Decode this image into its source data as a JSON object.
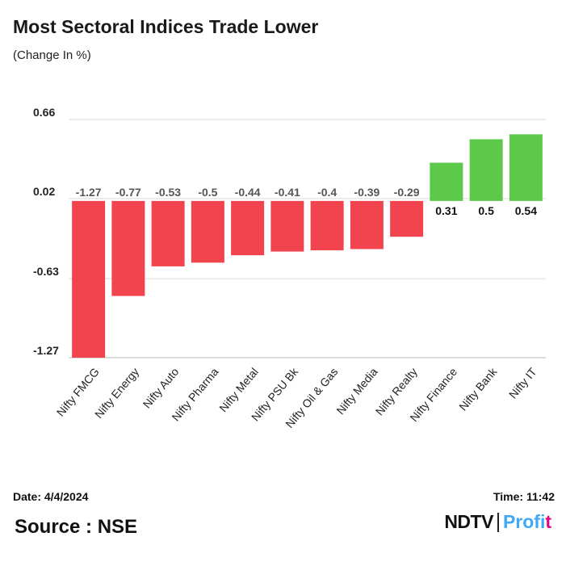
{
  "header": {
    "title": "Most Sectoral Indices Trade Lower",
    "subtitle": "(Change In %)"
  },
  "footer": {
    "date": "Date: 4/4/2024",
    "time": "Time: 11:42",
    "source": "Source : NSE"
  },
  "logo": {
    "brand": "NDTV",
    "product_lead": "Profi",
    "product_accent": "t"
  },
  "colors": {
    "negative": "#f2444f",
    "positive": "#5cc94a",
    "gridline": "#d9d9d9",
    "axis": "#cfcfcf"
  },
  "chart_data": {
    "type": "bar",
    "categories": [
      "Nifty FMCG",
      "Nifty Energy",
      "Nifty Auto",
      "Nifty Pharma",
      "Nifty Metal",
      "Nifty PSU Bk",
      "Nifty Oil & Gas",
      "Nifty Media",
      "Nifty Realty",
      "Nifty Finance",
      "Nifty Bank",
      "Nifty IT"
    ],
    "values": [
      -1.27,
      -0.77,
      -0.53,
      -0.5,
      -0.44,
      -0.41,
      -0.4,
      -0.39,
      -0.29,
      0.31,
      0.5,
      0.54
    ],
    "data_labels": [
      "-1.27",
      "-0.77",
      "-0.53",
      "-0.5",
      "-0.44",
      "-0.41",
      "-0.4",
      "-0.39",
      "-0.29",
      "0.31",
      "0.5",
      "0.54"
    ],
    "yticks": [
      0.66,
      0.02,
      -0.63,
      -1.27
    ],
    "ytick_labels": [
      "0.66",
      "0.02",
      "-0.63",
      "-1.27"
    ],
    "ylim": [
      -1.27,
      0.66
    ],
    "grid": true,
    "legend": "none"
  }
}
